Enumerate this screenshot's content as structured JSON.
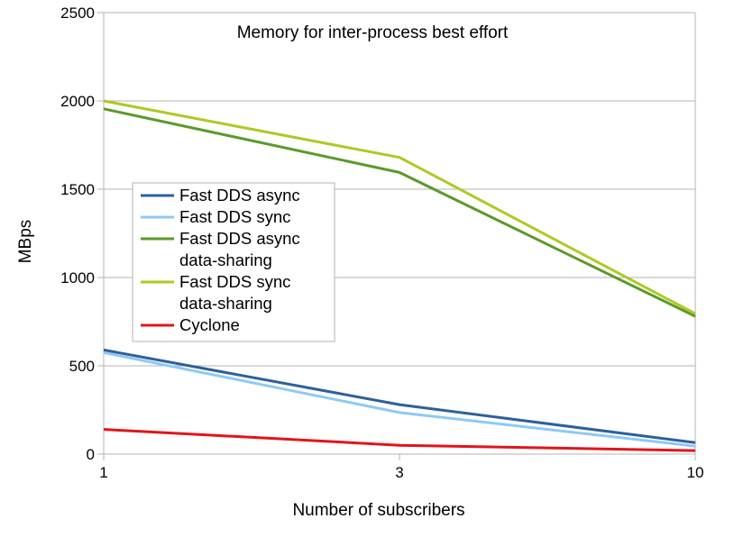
{
  "chart_data": {
    "type": "line",
    "title": "Memory for inter-process best effort",
    "xlabel": "Number of subscribers",
    "ylabel": "MBps",
    "x": [
      1,
      3,
      10
    ],
    "x_tick_labels": [
      "1",
      "3",
      "10"
    ],
    "ylim": [
      0,
      2500
    ],
    "y_ticks": [
      0,
      500,
      1000,
      1500,
      2000,
      2500
    ],
    "y_tick_labels": [
      "0",
      "500",
      "1000",
      "1500",
      "2000",
      "2500"
    ],
    "grid": "horizontal",
    "legend_position": "center-left",
    "series": [
      {
        "name": "Fast DDS async",
        "legend_lines": [
          "Fast DDS async"
        ],
        "color": "#2f5f9a",
        "values": [
          590,
          280,
          65
        ]
      },
      {
        "name": "Fast DDS sync",
        "legend_lines": [
          "Fast DDS sync"
        ],
        "color": "#8ec9f5",
        "values": [
          575,
          235,
          45
        ]
      },
      {
        "name": "Fast DDS async data-sharing",
        "legend_lines": [
          "Fast DDS async",
          "data-sharing"
        ],
        "color": "#5a9a2a",
        "values": [
          1955,
          1595,
          780
        ]
      },
      {
        "name": "Fast DDS sync data-sharing",
        "legend_lines": [
          "Fast DDS sync",
          "data-sharing"
        ],
        "color": "#aec923",
        "values": [
          2000,
          1680,
          795
        ]
      },
      {
        "name": "Cyclone",
        "legend_lines": [
          "Cyclone"
        ],
        "color": "#e3141a",
        "values": [
          140,
          50,
          20
        ]
      }
    ]
  }
}
